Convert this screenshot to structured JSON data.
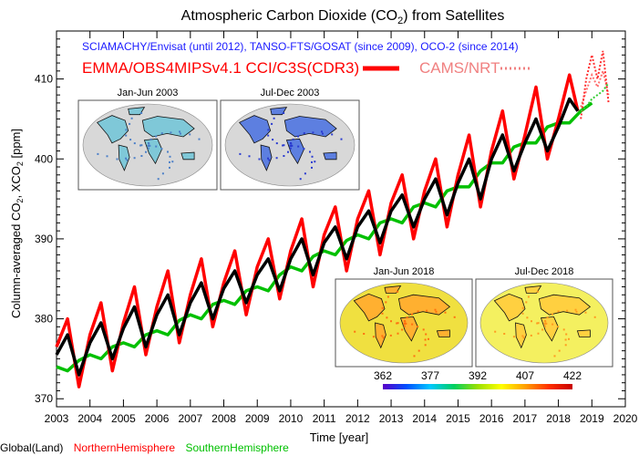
{
  "chart_data": {
    "type": "line",
    "title": "Atmospheric Carbon Dioxide (CO",
    "title_sub": "2",
    "title_end": ") from Satellites",
    "subtitle": "SCIAMACHY/Envisat (until 2012), TANSO-FTS/GOSAT (since 2009), OCO-2 (since 2014)",
    "product_label": "EMMA/OBS4MIPSv4.1 CCI/C3S(CDR3)",
    "nrt_label": "CAMS/NRT",
    "xlabel": "Time [year]",
    "ylabel_parts": [
      "Column-averaged CO",
      "2",
      ", XCO",
      "2",
      " [ppm]"
    ],
    "xlim": [
      2003,
      2020
    ],
    "ylim": [
      369,
      416
    ],
    "xticks": [
      2003,
      2004,
      2005,
      2006,
      2007,
      2008,
      2009,
      2010,
      2011,
      2012,
      2013,
      2014,
      2015,
      2016,
      2017,
      2018,
      2019,
      2020
    ],
    "yticks": [
      370,
      380,
      390,
      400,
      410
    ],
    "series": [
      {
        "name": "Global(Land)",
        "color": "#000000",
        "x": [
          2003.0,
          2003.33,
          2003.67,
          2004.0,
          2004.33,
          2004.67,
          2005.0,
          2005.33,
          2005.67,
          2006.0,
          2006.33,
          2006.67,
          2007.0,
          2007.33,
          2007.67,
          2008.0,
          2008.33,
          2008.67,
          2009.0,
          2009.33,
          2009.67,
          2010.0,
          2010.33,
          2010.67,
          2011.0,
          2011.33,
          2011.67,
          2012.0,
          2012.33,
          2012.67,
          2013.0,
          2013.33,
          2013.67,
          2014.0,
          2014.33,
          2014.67,
          2015.0,
          2015.33,
          2015.67,
          2016.0,
          2016.33,
          2016.67,
          2017.0,
          2017.33,
          2017.67,
          2018.0,
          2018.33,
          2018.58
        ],
        "values": [
          375.5,
          378.0,
          373.0,
          377.0,
          379.5,
          375.0,
          378.8,
          381.5,
          376.5,
          380.5,
          383.0,
          378.0,
          382.0,
          384.5,
          380.0,
          383.8,
          386.0,
          382.0,
          385.5,
          387.5,
          383.5,
          387.5,
          390.0,
          385.5,
          389.5,
          391.5,
          387.5,
          391.5,
          393.5,
          389.5,
          393.5,
          395.5,
          391.5,
          395.0,
          397.5,
          393.0,
          397.0,
          400.0,
          395.0,
          400.0,
          403.0,
          398.5,
          402.0,
          405.0,
          401.0,
          404.0,
          407.5,
          406.0
        ]
      },
      {
        "name": "NorthernHemisphere",
        "color": "#ff0000",
        "x": [
          2003.0,
          2003.33,
          2003.67,
          2004.0,
          2004.33,
          2004.67,
          2005.0,
          2005.33,
          2005.67,
          2006.0,
          2006.33,
          2006.67,
          2007.0,
          2007.33,
          2007.67,
          2008.0,
          2008.33,
          2008.67,
          2009.0,
          2009.33,
          2009.67,
          2010.0,
          2010.33,
          2010.67,
          2011.0,
          2011.33,
          2011.67,
          2012.0,
          2012.33,
          2012.67,
          2013.0,
          2013.33,
          2013.67,
          2014.0,
          2014.33,
          2014.67,
          2015.0,
          2015.33,
          2015.67,
          2016.0,
          2016.33,
          2016.67,
          2017.0,
          2017.33,
          2017.67,
          2018.0,
          2018.33,
          2018.58
        ],
        "values": [
          376.5,
          380.0,
          371.5,
          378.0,
          382.0,
          373.5,
          379.5,
          384.0,
          375.5,
          381.5,
          386.0,
          377.0,
          383.0,
          387.5,
          379.0,
          384.5,
          388.5,
          380.5,
          386.5,
          390.0,
          382.5,
          388.5,
          392.5,
          384.0,
          390.5,
          394.0,
          386.0,
          392.5,
          396.0,
          388.0,
          394.5,
          398.0,
          390.0,
          396.0,
          400.0,
          391.5,
          398.0,
          403.0,
          394.0,
          401.0,
          406.0,
          397.5,
          403.0,
          409.0,
          400.0,
          405.0,
          410.5,
          406.0
        ]
      },
      {
        "name": "SouthernHemisphere",
        "color": "#00c000",
        "x": [
          2003.0,
          2003.33,
          2003.67,
          2004.0,
          2004.33,
          2004.67,
          2005.0,
          2005.33,
          2005.67,
          2006.0,
          2006.33,
          2006.67,
          2007.0,
          2007.33,
          2007.67,
          2008.0,
          2008.33,
          2008.67,
          2009.0,
          2009.33,
          2009.67,
          2010.0,
          2010.33,
          2010.67,
          2011.0,
          2011.33,
          2011.67,
          2012.0,
          2012.33,
          2012.67,
          2013.0,
          2013.33,
          2013.67,
          2014.0,
          2014.33,
          2014.67,
          2015.0,
          2015.33,
          2015.67,
          2016.0,
          2016.33,
          2016.67,
          2017.0,
          2017.33,
          2017.67,
          2018.0,
          2018.33,
          2018.67,
          2019.0
        ],
        "values": [
          374.0,
          373.5,
          374.8,
          375.5,
          375.0,
          376.5,
          377.0,
          376.5,
          378.0,
          378.5,
          378.0,
          379.8,
          380.5,
          380.0,
          381.8,
          382.3,
          381.8,
          383.5,
          384.0,
          383.5,
          385.5,
          386.5,
          386.0,
          387.8,
          388.5,
          388.0,
          389.8,
          390.5,
          390.0,
          392.0,
          392.5,
          392.0,
          394.0,
          394.5,
          394.0,
          396.0,
          396.5,
          396.5,
          398.5,
          399.5,
          399.5,
          401.5,
          402.0,
          402.0,
          404.0,
          404.5,
          404.5,
          406.0,
          407.0
        ]
      }
    ],
    "nrt_series": [
      {
        "name": "CAMS/NRT Global",
        "color": "#ff7070",
        "x": [
          2018.67,
          2018.83,
          2019.0,
          2019.17,
          2019.33,
          2019.5
        ],
        "values": [
          406.5,
          408.5,
          410.5,
          409.0,
          411.0,
          408.0
        ]
      },
      {
        "name": "CAMS/NRT North",
        "color": "#ff3030",
        "x": [
          2018.67,
          2018.83,
          2019.0,
          2019.17,
          2019.33,
          2019.5
        ],
        "values": [
          405.0,
          410.0,
          413.0,
          410.0,
          413.5,
          407.0
        ]
      },
      {
        "name": "CAMS/NRT South",
        "color": "#33cc33",
        "x": [
          2018.67,
          2018.83,
          2019.0,
          2019.17,
          2019.33,
          2019.5
        ],
        "values": [
          406.0,
          406.5,
          407.5,
          408.0,
          408.5,
          409.5
        ]
      }
    ],
    "inset_maps": [
      {
        "title": "Jan-Jun 2003"
      },
      {
        "title": "Jul-Dec 2003"
      },
      {
        "title": "Jan-Jun 2018"
      },
      {
        "title": "Jul-Dec 2018"
      }
    ],
    "colorbar": {
      "ticks": [
        "362",
        "377",
        "392",
        "407",
        "422"
      ],
      "colors": [
        "#5a00c8",
        "#0050ff",
        "#00c8ff",
        "#00d060",
        "#9be000",
        "#ffff00",
        "#ffa000",
        "#ff3000",
        "#c80000"
      ]
    },
    "legend": [
      {
        "label": "Global(Land)",
        "color": "#000000"
      },
      {
        "label": "NorthernHemisphere",
        "color": "#ff0000"
      },
      {
        "label": "SouthernHemisphere",
        "color": "#00c000"
      }
    ]
  }
}
